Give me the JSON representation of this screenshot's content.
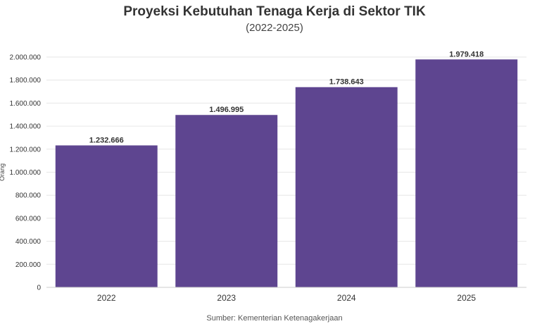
{
  "chart_data": {
    "type": "bar",
    "title": "Proyeksi Kebutuhan Tenaga Kerja di Sektor TIK",
    "subtitle": "(2022-2025)",
    "xlabel": "",
    "ylabel": "Orang",
    "categories": [
      "2022",
      "2023",
      "2024",
      "2025"
    ],
    "values": [
      1232666,
      1496995,
      1738643,
      1979418
    ],
    "value_labels": [
      "1.232.666",
      "1.496.995",
      "1.738.643",
      "1.979.418"
    ],
    "ylim": [
      0,
      2000000
    ],
    "yticks": [
      0,
      200000,
      400000,
      600000,
      800000,
      1000000,
      1200000,
      1400000,
      1600000,
      1800000,
      2000000
    ],
    "ytick_labels": [
      "0",
      "200.000",
      "400.000",
      "600.000",
      "800.000",
      "1.000.000",
      "1.200.000",
      "1.400.000",
      "1.600.000",
      "1.800.000",
      "2.000.000"
    ],
    "grid": true,
    "bar_color": "#5e4590",
    "source": "Sumber: Kementerian Ketenagakerjaan"
  }
}
